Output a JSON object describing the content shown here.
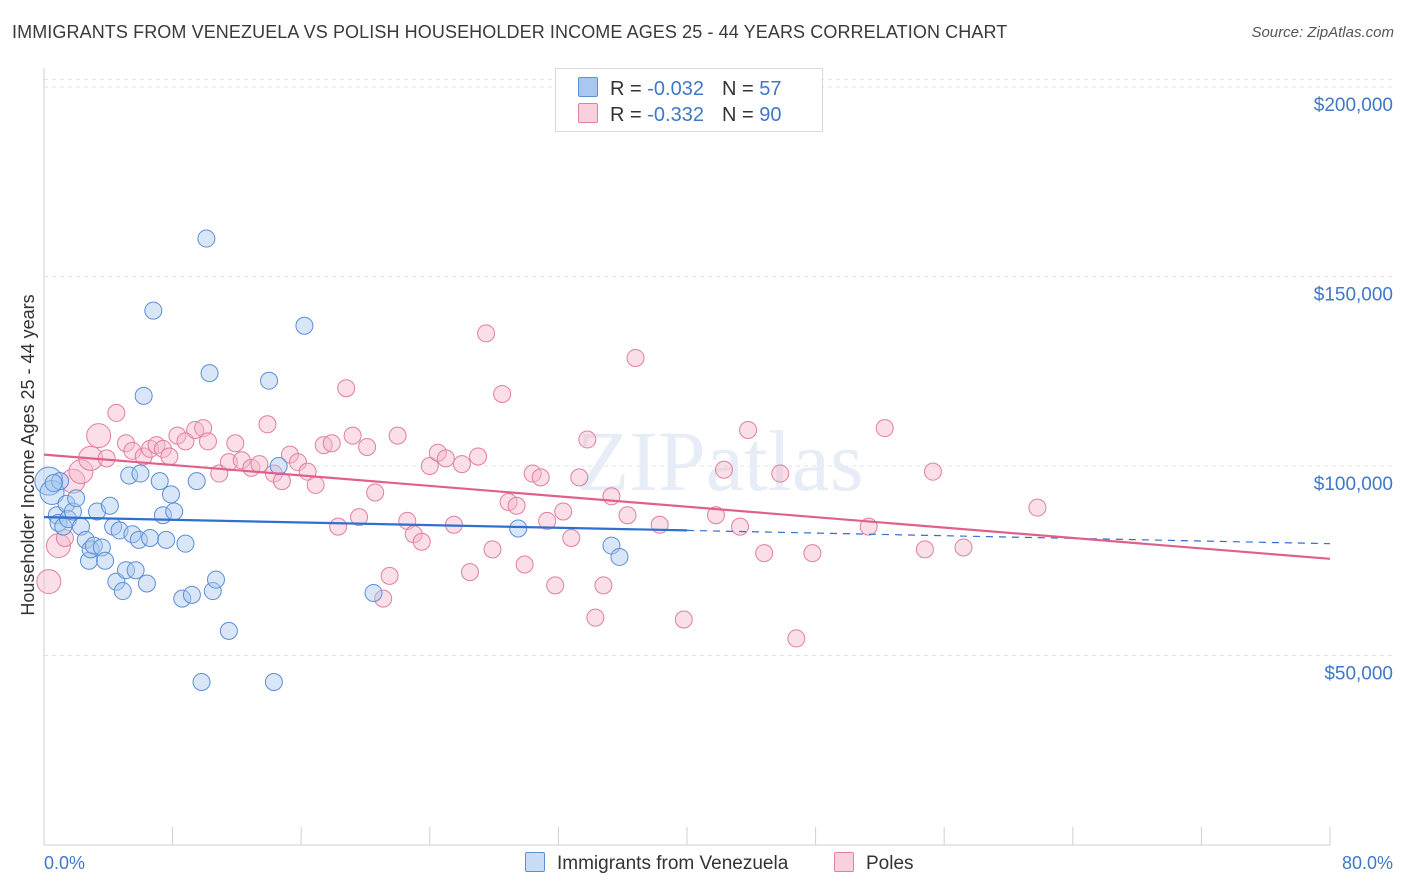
{
  "title": "IMMIGRANTS FROM VENEZUELA VS POLISH HOUSEHOLDER INCOME AGES 25 - 44 YEARS CORRELATION CHART",
  "source": "Source: ZipAtlas.com",
  "watermark": "ZIPatlas",
  "colors": {
    "blue_fill": "#a9c8ef",
    "blue_stroke": "#5b8fd6",
    "blue_line": "#2f6fce",
    "pink_fill": "#f5b7cb",
    "pink_stroke": "#e27ea0",
    "pink_line": "#e0608c",
    "axis_text": "#3f78c8",
    "grid": "#e3e3e3"
  },
  "legend_top": [
    {
      "r_label": "R = ",
      "r_value": "-0.032",
      "n_label": "N = ",
      "n_value": "57",
      "color": "blue"
    },
    {
      "r_label": "R = ",
      "r_value": "-0.332",
      "n_label": "N = ",
      "n_value": "90",
      "color": "pink"
    }
  ],
  "legend_bottom": [
    {
      "label": "Immigrants from Venezuela",
      "color": "blue"
    },
    {
      "label": "Poles",
      "color": "pink"
    }
  ],
  "chart_data": {
    "type": "scatter",
    "title": "IMMIGRANTS FROM VENEZUELA VS POLISH HOUSEHOLDER INCOME AGES 25 - 44 YEARS CORRELATION CHART",
    "xlabel": "",
    "ylabel": "Householder Income Ages 25 - 44 years",
    "xlim": [
      0,
      80
    ],
    "ylim": [
      0,
      205000
    ],
    "x_tick_labels": [
      "0.0%",
      "80.0%"
    ],
    "y_ticks": [
      50000,
      100000,
      150000,
      200000
    ],
    "y_tick_labels": [
      "$50,000",
      "$100,000",
      "$150,000",
      "$200,000"
    ],
    "grid": true,
    "legend_position": "top-center",
    "series": [
      {
        "name": "Immigrants from Venezuela",
        "color": "#5b8fd6",
        "trend": {
          "x0": 0,
          "y0": 86500,
          "x1": 40,
          "y1": 83000,
          "dashed_to_x": 80,
          "dashed_to_y": 79500
        },
        "points": [
          [
            0.3,
            96000,
            3
          ],
          [
            0.5,
            93000,
            2
          ],
          [
            0.8,
            87000,
            1
          ],
          [
            0.9,
            85000,
            1
          ],
          [
            1.0,
            96000,
            1
          ],
          [
            1.2,
            84000,
            1
          ],
          [
            1.4,
            90000,
            1
          ],
          [
            1.5,
            86000,
            1
          ],
          [
            1.8,
            88000,
            1
          ],
          [
            2.0,
            91500,
            1
          ],
          [
            2.3,
            84000,
            1
          ],
          [
            2.6,
            80500,
            1
          ],
          [
            2.8,
            75000,
            1
          ],
          [
            2.9,
            78000,
            1
          ],
          [
            3.1,
            79000,
            1
          ],
          [
            3.3,
            88000,
            1
          ],
          [
            3.6,
            78500,
            1
          ],
          [
            3.8,
            75000,
            1
          ],
          [
            4.1,
            89500,
            1
          ],
          [
            4.3,
            84000,
            1
          ],
          [
            4.5,
            69500,
            1
          ],
          [
            4.7,
            83000,
            1
          ],
          [
            4.9,
            67000,
            1
          ],
          [
            5.1,
            72500,
            1
          ],
          [
            5.3,
            97500,
            1
          ],
          [
            5.5,
            82000,
            1
          ],
          [
            5.7,
            72500,
            1
          ],
          [
            5.9,
            80500,
            1
          ],
          [
            6.0,
            98000,
            1
          ],
          [
            6.2,
            118500,
            1
          ],
          [
            6.4,
            69000,
            1
          ],
          [
            6.6,
            81000,
            1
          ],
          [
            6.8,
            141000,
            1
          ],
          [
            7.2,
            96000,
            1
          ],
          [
            7.4,
            87000,
            1
          ],
          [
            7.6,
            80500,
            1
          ],
          [
            7.9,
            92500,
            1
          ],
          [
            8.1,
            88000,
            1
          ],
          [
            8.6,
            65000,
            1
          ],
          [
            8.8,
            79500,
            1
          ],
          [
            9.2,
            66000,
            1
          ],
          [
            9.5,
            96000,
            1
          ],
          [
            9.8,
            43000,
            1
          ],
          [
            10.1,
            160000,
            1
          ],
          [
            10.3,
            124500,
            1
          ],
          [
            10.5,
            67000,
            1
          ],
          [
            10.7,
            70000,
            1
          ],
          [
            11.5,
            56500,
            1
          ],
          [
            14.0,
            122500,
            1
          ],
          [
            14.3,
            43000,
            1
          ],
          [
            14.6,
            100000,
            1
          ],
          [
            16.2,
            137000,
            1
          ],
          [
            20.5,
            66500,
            1
          ],
          [
            29.5,
            83500,
            1
          ],
          [
            35.3,
            79000,
            1
          ],
          [
            35.8,
            76000,
            1
          ],
          [
            0.6,
            95500,
            1
          ]
        ]
      },
      {
        "name": "Poles",
        "color": "#e27ea0",
        "trend": {
          "x0": 0,
          "y0": 103000,
          "x1": 80,
          "y1": 75500
        },
        "points": [
          [
            0.3,
            69500,
            2
          ],
          [
            0.9,
            79000,
            2
          ],
          [
            1.3,
            81000,
            1
          ],
          [
            1.8,
            96000,
            2
          ],
          [
            2.3,
            98500,
            2
          ],
          [
            2.9,
            102000,
            2
          ],
          [
            3.4,
            108000,
            2
          ],
          [
            3.9,
            102000,
            1
          ],
          [
            4.5,
            114000,
            1
          ],
          [
            5.1,
            106000,
            1
          ],
          [
            5.5,
            104000,
            1
          ],
          [
            6.2,
            102500,
            1
          ],
          [
            6.6,
            104500,
            1
          ],
          [
            7.0,
            105500,
            1
          ],
          [
            7.4,
            104500,
            1
          ],
          [
            7.8,
            102500,
            1
          ],
          [
            8.3,
            108000,
            1
          ],
          [
            8.8,
            106500,
            1
          ],
          [
            9.4,
            109500,
            1
          ],
          [
            9.9,
            110000,
            1
          ],
          [
            10.2,
            106500,
            1
          ],
          [
            10.9,
            98000,
            1
          ],
          [
            11.5,
            101000,
            1
          ],
          [
            11.9,
            106000,
            1
          ],
          [
            12.3,
            101500,
            1
          ],
          [
            12.9,
            99500,
            1
          ],
          [
            13.4,
            100500,
            1
          ],
          [
            13.9,
            111000,
            1
          ],
          [
            14.3,
            98000,
            1
          ],
          [
            14.8,
            96000,
            1
          ],
          [
            15.3,
            103000,
            1
          ],
          [
            15.8,
            101000,
            1
          ],
          [
            16.4,
            98500,
            1
          ],
          [
            16.9,
            95000,
            1
          ],
          [
            17.4,
            105500,
            1
          ],
          [
            17.9,
            106000,
            1
          ],
          [
            18.3,
            84000,
            1
          ],
          [
            18.8,
            120500,
            1
          ],
          [
            19.2,
            108000,
            1
          ],
          [
            19.6,
            86500,
            1
          ],
          [
            20.1,
            105000,
            1
          ],
          [
            20.6,
            93000,
            1
          ],
          [
            21.1,
            65000,
            1
          ],
          [
            21.5,
            71000,
            1
          ],
          [
            22.0,
            108000,
            1
          ],
          [
            22.6,
            85500,
            1
          ],
          [
            23.0,
            82000,
            1
          ],
          [
            23.5,
            80000,
            1
          ],
          [
            24.0,
            100000,
            1
          ],
          [
            24.5,
            103500,
            1
          ],
          [
            25.0,
            102000,
            1
          ],
          [
            25.5,
            84500,
            1
          ],
          [
            26.0,
            100500,
            1
          ],
          [
            26.5,
            72000,
            1
          ],
          [
            27.0,
            102500,
            1
          ],
          [
            27.5,
            135000,
            1
          ],
          [
            27.9,
            78000,
            1
          ],
          [
            28.5,
            119000,
            1
          ],
          [
            28.9,
            90500,
            1
          ],
          [
            29.4,
            89500,
            1
          ],
          [
            29.9,
            74000,
            1
          ],
          [
            30.4,
            98000,
            1
          ],
          [
            30.9,
            97000,
            1
          ],
          [
            31.3,
            85500,
            1
          ],
          [
            31.8,
            68500,
            1
          ],
          [
            32.3,
            88000,
            1
          ],
          [
            32.8,
            81000,
            1
          ],
          [
            33.3,
            97000,
            1
          ],
          [
            33.8,
            107000,
            1
          ],
          [
            34.3,
            60000,
            1
          ],
          [
            34.8,
            68500,
            1
          ],
          [
            35.3,
            92000,
            1
          ],
          [
            36.3,
            87000,
            1
          ],
          [
            36.8,
            128500,
            1
          ],
          [
            38.3,
            84500,
            1
          ],
          [
            39.8,
            59500,
            1
          ],
          [
            41.8,
            87000,
            1
          ],
          [
            42.3,
            99000,
            1
          ],
          [
            43.3,
            84000,
            1
          ],
          [
            43.8,
            109500,
            1
          ],
          [
            44.8,
            77000,
            1
          ],
          [
            45.8,
            98000,
            1
          ],
          [
            46.8,
            54500,
            1
          ],
          [
            47.8,
            77000,
            1
          ],
          [
            51.3,
            84000,
            1
          ],
          [
            52.3,
            110000,
            1
          ],
          [
            54.8,
            78000,
            1
          ],
          [
            55.3,
            98500,
            1
          ],
          [
            57.2,
            78500,
            1
          ],
          [
            61.8,
            89000,
            1
          ]
        ]
      }
    ]
  }
}
